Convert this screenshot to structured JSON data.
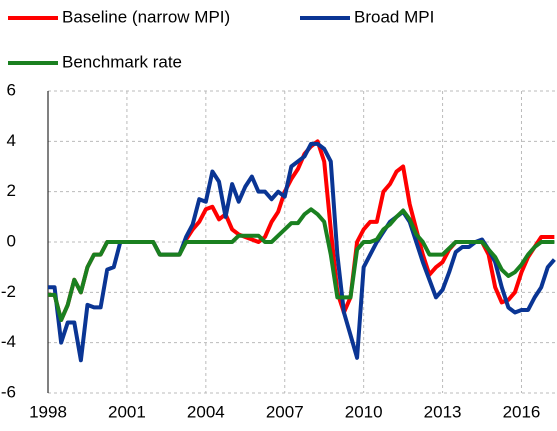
{
  "chart_data": {
    "type": "line",
    "x": [
      1998,
      1998.25,
      1998.5,
      1998.75,
      1999,
      1999.25,
      1999.5,
      1999.75,
      2000,
      2000.25,
      2000.5,
      2000.75,
      2001,
      2001.25,
      2001.5,
      2001.75,
      2002,
      2002.25,
      2002.5,
      2002.75,
      2003,
      2003.25,
      2003.5,
      2003.75,
      2004,
      2004.25,
      2004.5,
      2004.75,
      2005,
      2005.25,
      2005.5,
      2005.75,
      2006,
      2006.25,
      2006.5,
      2006.75,
      2007,
      2007.25,
      2007.5,
      2007.75,
      2008,
      2008.25,
      2008.5,
      2008.75,
      2009,
      2009.25,
      2009.5,
      2009.75,
      2010,
      2010.25,
      2010.5,
      2010.75,
      2011,
      2011.25,
      2011.5,
      2011.75,
      2012,
      2012.25,
      2012.5,
      2012.75,
      2013,
      2013.25,
      2013.5,
      2013.75,
      2014,
      2014.25,
      2014.5,
      2014.75,
      2015,
      2015.25,
      2015.5,
      2015.75,
      2016,
      2016.25,
      2016.5,
      2016.75,
      2017,
      2017.25
    ],
    "series": [
      {
        "name": "Baseline (narrow MPI)",
        "color": "#ff0000",
        "values": [
          -2.1,
          -2.1,
          -3.1,
          -2.5,
          -1.5,
          -2.0,
          -1.0,
          -0.5,
          -0.5,
          0,
          0,
          0,
          0,
          0,
          0,
          0,
          0,
          -0.5,
          -0.5,
          -0.5,
          -0.5,
          0.1,
          0.5,
          0.8,
          1.3,
          1.4,
          0.9,
          1.1,
          0.5,
          0.3,
          0.2,
          0.1,
          0,
          0.2,
          0.8,
          1.2,
          2.0,
          2.5,
          2.9,
          3.5,
          3.8,
          4.0,
          3.2,
          0.5,
          -2.0,
          -2.8,
          -2.2,
          0,
          0.5,
          0.8,
          0.8,
          2.0,
          2.3,
          2.8,
          3.0,
          1.5,
          0.5,
          -0.5,
          -1.3,
          -1.0,
          -0.8,
          -0.3,
          0,
          0,
          0,
          0,
          0,
          -0.5,
          -1.8,
          -2.4,
          -2.3,
          -2.0,
          -1.2,
          -0.6,
          -0.2,
          0.2,
          0.2,
          0.2
        ]
      },
      {
        "name": "Broad MPI",
        "color": "#0a3594",
        "values": [
          -1.8,
          -1.8,
          -4.0,
          -3.2,
          -3.2,
          -4.7,
          -2.5,
          -2.6,
          -2.6,
          -1.1,
          -1.0,
          0,
          0,
          0,
          0,
          0,
          0,
          -0.5,
          -0.5,
          -0.5,
          -0.5,
          0.2,
          0.7,
          1.7,
          1.6,
          2.8,
          2.4,
          1.0,
          2.3,
          1.6,
          2.2,
          2.6,
          2.0,
          2.0,
          1.7,
          2.0,
          1.8,
          3.0,
          3.2,
          3.4,
          3.9,
          3.9,
          3.7,
          3.2,
          -0.5,
          -2.8,
          -3.7,
          -4.6,
          -1.0,
          -0.5,
          0,
          0.4,
          0.8,
          1.0,
          1.2,
          0.8,
          0,
          -0.8,
          -1.5,
          -2.2,
          -1.9,
          -1.2,
          -0.4,
          -0.2,
          -0.2,
          0,
          0.1,
          -0.3,
          -0.8,
          -1.8,
          -2.6,
          -2.8,
          -2.7,
          -2.7,
          -2.2,
          -1.8,
          -1.0,
          -0.7
        ]
      },
      {
        "name": "Benchmark rate",
        "color": "#1a8020",
        "values": [
          -2.1,
          -2.1,
          -3.1,
          -2.5,
          -1.5,
          -2.0,
          -1.0,
          -0.5,
          -0.5,
          0,
          0,
          0,
          0,
          0,
          0,
          0,
          0,
          -0.5,
          -0.5,
          -0.5,
          -0.5,
          0,
          0,
          0,
          0,
          0,
          0,
          0,
          0,
          0.25,
          0.25,
          0.25,
          0.25,
          0,
          0,
          0.25,
          0.5,
          0.75,
          0.75,
          1.1,
          1.3,
          1.1,
          0.8,
          -0.5,
          -2.2,
          -2.2,
          -2.2,
          -0.3,
          0,
          0,
          0.1,
          0.5,
          0.7,
          1.0,
          1.25,
          0.9,
          0.3,
          0,
          -0.5,
          -0.5,
          -0.5,
          -0.25,
          0,
          0,
          0,
          0,
          0,
          -0.3,
          -0.6,
          -1.1,
          -1.35,
          -1.2,
          -0.9,
          -0.5,
          -0.2,
          0,
          0,
          0
        ]
      }
    ],
    "xlim": [
      1998,
      2017.35
    ],
    "xticks": [
      1998,
      2001,
      2004,
      2007,
      2010,
      2013,
      2016
    ],
    "ylim": [
      -6,
      6
    ],
    "yticks": [
      -6,
      -4,
      -2,
      0,
      2,
      4,
      6
    ],
    "grid": true
  }
}
